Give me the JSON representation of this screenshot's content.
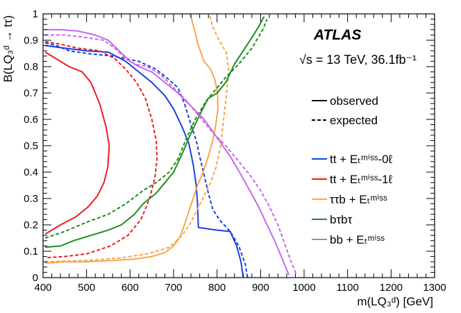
{
  "chart_data": {
    "type": "line",
    "experiment": "ATLAS",
    "energy_text": "√s = 13 TeV, 36.1fb⁻¹",
    "xlabel": "m(LQ₃ᵈ) [GeV]",
    "ylabel": "B(LQ₃ᵈ → tτ)",
    "xlim": [
      400,
      1300
    ],
    "ylim": [
      0,
      1
    ],
    "x_ticks": [
      "400",
      "500",
      "600",
      "700",
      "800",
      "900",
      "1000",
      "1100",
      "1200",
      "1300"
    ],
    "y_ticks": [
      "0",
      "0.1",
      "0.2",
      "0.3",
      "0.4",
      "0.5",
      "0.6",
      "0.7",
      "0.8",
      "0.9",
      "1"
    ],
    "style_legend": [
      {
        "label": "observed",
        "style": "solid"
      },
      {
        "label": "expected",
        "style": "dashed"
      }
    ],
    "legend_position": "right",
    "series": [
      {
        "name": "tt + E_T^miss - 0ℓ",
        "legend_text": "tt + Eₜᵐⁱˢˢ-0ℓ",
        "color": "#1a3fe0",
        "observed": [
          [
            405,
            0.88
          ],
          [
            450,
            0.87
          ],
          [
            500,
            0.86
          ],
          [
            550,
            0.855
          ],
          [
            590,
            0.82
          ],
          [
            620,
            0.78
          ],
          [
            650,
            0.74
          ],
          [
            680,
            0.69
          ],
          [
            700,
            0.64
          ],
          [
            720,
            0.57
          ],
          [
            735,
            0.51
          ],
          [
            745,
            0.43
          ],
          [
            752,
            0.35
          ],
          [
            755,
            0.28
          ],
          [
            757,
            0.19
          ],
          [
            800,
            0.18
          ],
          [
            830,
            0.175
          ],
          [
            845,
            0.12
          ],
          [
            855,
            0.06
          ],
          [
            860,
            0
          ]
        ],
        "expected": [
          [
            405,
            0.89
          ],
          [
            430,
            0.88
          ],
          [
            460,
            0.86
          ],
          [
            500,
            0.85
          ],
          [
            560,
            0.84
          ],
          [
            620,
            0.82
          ],
          [
            660,
            0.79
          ],
          [
            690,
            0.75
          ],
          [
            710,
            0.72
          ],
          [
            725,
            0.66
          ],
          [
            740,
            0.58
          ],
          [
            752,
            0.52
          ],
          [
            760,
            0.46
          ],
          [
            770,
            0.39
          ],
          [
            780,
            0.32
          ],
          [
            790,
            0.26
          ],
          [
            805,
            0.22
          ],
          [
            830,
            0.175
          ],
          [
            850,
            0.12
          ],
          [
            865,
            0.05
          ],
          [
            870,
            0
          ]
        ]
      },
      {
        "name": "tt + E_T^miss - 1ℓ",
        "legend_text": "tt + Eₜᵐⁱˢˢ-1ℓ",
        "color": "#ee1c1c",
        "observed": [
          [
            405,
            0.855
          ],
          [
            430,
            0.83
          ],
          [
            460,
            0.8
          ],
          [
            490,
            0.78
          ],
          [
            510,
            0.74
          ],
          [
            530,
            0.66
          ],
          [
            545,
            0.57
          ],
          [
            552,
            0.5
          ],
          [
            549,
            0.42
          ],
          [
            540,
            0.36
          ],
          [
            525,
            0.31
          ],
          [
            505,
            0.27
          ],
          [
            475,
            0.23
          ],
          [
            440,
            0.2
          ],
          [
            405,
            0.165
          ]
        ],
        "expected": [
          [
            405,
            0.895
          ],
          [
            440,
            0.885
          ],
          [
            480,
            0.87
          ],
          [
            530,
            0.86
          ],
          [
            565,
            0.83
          ],
          [
            590,
            0.79
          ],
          [
            615,
            0.74
          ],
          [
            635,
            0.68
          ],
          [
            650,
            0.6
          ],
          [
            660,
            0.52
          ],
          [
            662,
            0.45
          ],
          [
            657,
            0.38
          ],
          [
            645,
            0.3
          ],
          [
            625,
            0.22
          ],
          [
            595,
            0.16
          ],
          [
            555,
            0.12
          ],
          [
            500,
            0.09
          ],
          [
            450,
            0.08
          ],
          [
            405,
            0.075
          ]
        ]
      },
      {
        "name": "ττb + E_T^miss",
        "legend_text": "ττb + Eₜᵐⁱˢˢ",
        "color": "#f7a54a",
        "observed": [
          [
            405,
            0.055
          ],
          [
            450,
            0.06
          ],
          [
            500,
            0.06
          ],
          [
            560,
            0.065
          ],
          [
            610,
            0.07
          ],
          [
            650,
            0.08
          ],
          [
            680,
            0.095
          ],
          [
            700,
            0.12
          ],
          [
            715,
            0.155
          ],
          [
            725,
            0.2
          ],
          [
            735,
            0.25
          ],
          [
            745,
            0.3
          ],
          [
            755,
            0.35
          ],
          [
            768,
            0.4
          ],
          [
            780,
            0.46
          ],
          [
            790,
            0.52
          ],
          [
            797,
            0.58
          ],
          [
            802,
            0.64
          ],
          [
            801,
            0.7
          ],
          [
            795,
            0.75
          ],
          [
            785,
            0.79
          ],
          [
            770,
            0.82
          ],
          [
            757,
            0.88
          ],
          [
            748,
            0.94
          ],
          [
            738,
            1.0
          ]
        ],
        "expected": [
          [
            405,
            0.06
          ],
          [
            500,
            0.065
          ],
          [
            580,
            0.075
          ],
          [
            640,
            0.09
          ],
          [
            690,
            0.115
          ],
          [
            720,
            0.16
          ],
          [
            740,
            0.21
          ],
          [
            755,
            0.26
          ],
          [
            770,
            0.31
          ],
          [
            785,
            0.36
          ],
          [
            798,
            0.42
          ],
          [
            808,
            0.5
          ],
          [
            815,
            0.6
          ],
          [
            822,
            0.7
          ],
          [
            827,
            0.78
          ],
          [
            822,
            0.85
          ],
          [
            805,
            0.9
          ],
          [
            790,
            0.95
          ],
          [
            782,
            1.0
          ]
        ]
      },
      {
        "name": "bτbτ",
        "legend_text": "bτbτ",
        "color": "#1e8c1e",
        "observed": [
          [
            405,
            0.115
          ],
          [
            440,
            0.12
          ],
          [
            470,
            0.14
          ],
          [
            510,
            0.16
          ],
          [
            550,
            0.18
          ],
          [
            580,
            0.2
          ],
          [
            610,
            0.24
          ],
          [
            630,
            0.28
          ],
          [
            660,
            0.32
          ],
          [
            680,
            0.36
          ],
          [
            700,
            0.4
          ],
          [
            720,
            0.47
          ],
          [
            738,
            0.54
          ],
          [
            755,
            0.6
          ],
          [
            770,
            0.65
          ],
          [
            780,
            0.68
          ],
          [
            800,
            0.7
          ],
          [
            820,
            0.74
          ],
          [
            840,
            0.81
          ],
          [
            860,
            0.86
          ],
          [
            880,
            0.91
          ],
          [
            895,
            0.95
          ],
          [
            908,
            0.99
          ]
        ],
        "expected": [
          [
            405,
            0.15
          ],
          [
            450,
            0.175
          ],
          [
            500,
            0.21
          ],
          [
            550,
            0.24
          ],
          [
            590,
            0.28
          ],
          [
            630,
            0.33
          ],
          [
            660,
            0.36
          ],
          [
            690,
            0.4
          ],
          [
            710,
            0.45
          ],
          [
            730,
            0.53
          ],
          [
            750,
            0.6
          ],
          [
            775,
            0.67
          ],
          [
            800,
            0.72
          ],
          [
            820,
            0.76
          ],
          [
            850,
            0.81
          ],
          [
            880,
            0.87
          ],
          [
            905,
            0.94
          ],
          [
            915,
            0.98
          ]
        ]
      },
      {
        "name": "bb + E_T^miss",
        "legend_text": "bb + Eₜᵐⁱˢˢ",
        "color": "#c468ec",
        "observed": [
          [
            405,
            0.94
          ],
          [
            440,
            0.94
          ],
          [
            480,
            0.935
          ],
          [
            520,
            0.92
          ],
          [
            550,
            0.9
          ],
          [
            575,
            0.86
          ],
          [
            600,
            0.82
          ],
          [
            620,
            0.8
          ],
          [
            650,
            0.78
          ],
          [
            680,
            0.74
          ],
          [
            710,
            0.7
          ],
          [
            740,
            0.65
          ],
          [
            770,
            0.6
          ],
          [
            800,
            0.53
          ],
          [
            830,
            0.46
          ],
          [
            855,
            0.39
          ],
          [
            875,
            0.33
          ],
          [
            895,
            0.27
          ],
          [
            915,
            0.2
          ],
          [
            935,
            0.13
          ],
          [
            950,
            0.07
          ],
          [
            965,
            0.01
          ]
        ],
        "expected": [
          [
            405,
            0.92
          ],
          [
            450,
            0.92
          ],
          [
            500,
            0.91
          ],
          [
            540,
            0.9
          ],
          [
            565,
            0.87
          ],
          [
            590,
            0.83
          ],
          [
            610,
            0.81
          ],
          [
            640,
            0.8
          ],
          [
            670,
            0.77
          ],
          [
            700,
            0.72
          ],
          [
            730,
            0.67
          ],
          [
            760,
            0.61
          ],
          [
            790,
            0.55
          ],
          [
            820,
            0.5
          ],
          [
            850,
            0.44
          ],
          [
            875,
            0.39
          ],
          [
            900,
            0.33
          ],
          [
            920,
            0.27
          ],
          [
            940,
            0.2
          ],
          [
            955,
            0.13
          ],
          [
            970,
            0.06
          ],
          [
            983,
            0.01
          ]
        ]
      }
    ]
  }
}
